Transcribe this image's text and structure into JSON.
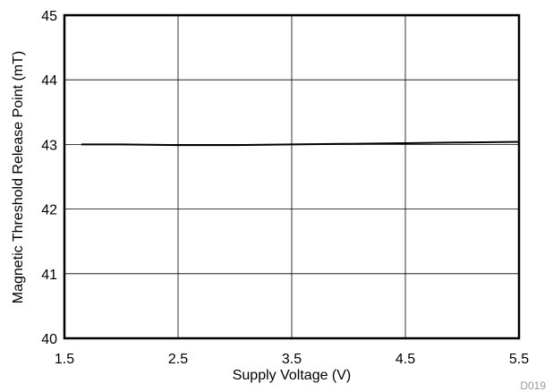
{
  "chart_data": {
    "type": "line",
    "title": "",
    "xlabel": "Supply Voltage (V)",
    "ylabel": "Magnetic Threshold Release Point (mT)",
    "xlim": [
      1.5,
      5.5
    ],
    "ylim": [
      40,
      45
    ],
    "xticks": [
      1.5,
      2.5,
      3.5,
      4.5,
      5.5
    ],
    "yticks": [
      40,
      41,
      42,
      43,
      44,
      45
    ],
    "xtick_labels": [
      "1.5",
      "2.5",
      "3.5",
      "4.5",
      "5.5"
    ],
    "ytick_labels": [
      "40",
      "41",
      "42",
      "43",
      "44",
      "45"
    ],
    "grid": true,
    "series": [
      {
        "color": "#000000",
        "x": [
          1.65,
          2.0,
          2.5,
          3.0,
          3.5,
          4.0,
          4.5,
          5.0,
          5.5
        ],
        "y": [
          43.0,
          43.0,
          42.99,
          42.99,
          43.0,
          43.01,
          43.02,
          43.03,
          43.04
        ]
      }
    ],
    "footnote": "D019"
  }
}
